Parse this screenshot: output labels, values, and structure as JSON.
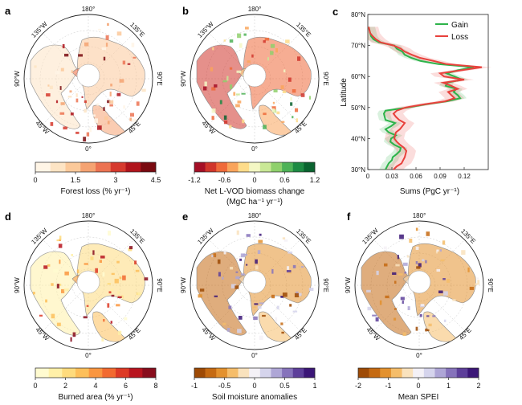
{
  "panels": [
    {
      "letter": "a",
      "top_lon": "180°",
      "bottom_lon": "0°",
      "left_lon": "90°W",
      "right_lon": "90°E",
      "ul_lon": "135°W",
      "ur_lon": "135°E",
      "ll_lon": "45°W",
      "lr_lon": "45°E",
      "cb_title": "Forest loss (% yr⁻¹)",
      "cb_ticks": [
        "0",
        "1.5",
        "3",
        "4.5"
      ],
      "cb_colors": [
        "#fff5e6",
        "#fde4c4",
        "#fbc99a",
        "#f5a372",
        "#ec7352",
        "#d63a2e",
        "#b0141c",
        "#7a0a10"
      ]
    },
    {
      "letter": "b",
      "top_lon": "180°",
      "bottom_lon": "0°",
      "left_lon": "90°W",
      "right_lon": "90°E",
      "ul_lon": "135°W",
      "ur_lon": "135°E",
      "ll_lon": "45°W",
      "lr_lon": "45°E",
      "cb_title": "Net L-VOD biomass change",
      "cb_subtitle": "(MgC ha⁻¹ yr⁻¹)",
      "cb_ticks": [
        "-1.2",
        "-0.6",
        "0",
        "0.6",
        "1.2"
      ],
      "cb_colors": [
        "#a50f26",
        "#d0352b",
        "#ef6a3a",
        "#f9a45b",
        "#fedc8a",
        "#f4f7c4",
        "#c9e896",
        "#8fd06c",
        "#4eb257",
        "#1d8a43",
        "#0a6330"
      ]
    },
    {
      "letter": "d",
      "top_lon": "180°",
      "bottom_lon": "0°",
      "left_lon": "90°W",
      "right_lon": "90°E",
      "ul_lon": "135°W",
      "ur_lon": "135°E",
      "ll_lon": "45°W",
      "lr_lon": "45°E",
      "cb_title": "Burned area (% yr⁻¹)",
      "cb_ticks": [
        "0",
        "2",
        "4",
        "6",
        "8"
      ],
      "cb_colors": [
        "#fffbd0",
        "#fff0a8",
        "#fedb7d",
        "#fdbf5a",
        "#fa9640",
        "#f26a30",
        "#dd3a26",
        "#b8141f",
        "#880d1d"
      ]
    },
    {
      "letter": "e",
      "top_lon": "180°",
      "bottom_lon": "0°",
      "left_lon": "90°W",
      "right_lon": "90°E",
      "ul_lon": "135°W",
      "ur_lon": "135°E",
      "ll_lon": "45°W",
      "lr_lon": "45°E",
      "cb_title": "Soil moisture anomalies",
      "cb_ticks": [
        "-1",
        "-0.5",
        "0",
        "0.5",
        "1"
      ],
      "cb_colors": [
        "#9e4a05",
        "#c56a12",
        "#e3912e",
        "#f5bd6a",
        "#f9e2bd",
        "#f4f1f6",
        "#d5d4ec",
        "#aea6d6",
        "#8673bb",
        "#5d3f9a",
        "#3b1677"
      ]
    },
    {
      "letter": "f",
      "top_lon": "180°",
      "bottom_lon": "0°",
      "left_lon": "90°W",
      "right_lon": "90°E",
      "ul_lon": "135°W",
      "ur_lon": "135°E",
      "ll_lon": "45°W",
      "lr_lon": "45°E",
      "cb_title": "Mean SPEI",
      "cb_ticks": [
        "-2",
        "-1",
        "0",
        "1",
        "2"
      ],
      "cb_colors": [
        "#9e4a05",
        "#c56a12",
        "#e3912e",
        "#f5bd6a",
        "#f9e2bd",
        "#f4f1f6",
        "#d5d4ec",
        "#aea6d6",
        "#8673bb",
        "#5d3f9a",
        "#3b1677"
      ]
    }
  ],
  "panel_c": {
    "letter": "c"
  },
  "chart_data": {
    "type": "line",
    "xlabel": "Sums (PgC yr⁻¹)",
    "ylabel": "Latitude",
    "xlim": [
      0,
      0.15
    ],
    "ylim": [
      30,
      80
    ],
    "xticks": [
      0,
      0.03,
      0.06,
      0.09,
      0.12
    ],
    "xtick_labels": [
      "0",
      "0.03",
      "0.06",
      "0.09",
      "0.12"
    ],
    "yticks": [
      30,
      40,
      50,
      60,
      70,
      80
    ],
    "ytick_labels": [
      "30°N",
      "40°N",
      "50°N",
      "60°N",
      "70°N",
      "80°N"
    ],
    "legend_position": "top-right",
    "series": [
      {
        "name": "Gain",
        "color": "#2db34a",
        "lat": [
          30,
          31,
          32,
          33,
          34,
          35,
          36,
          37,
          38,
          39,
          40,
          41,
          42,
          43,
          44,
          45,
          46,
          47,
          48,
          49,
          50,
          51,
          52,
          53,
          54,
          55,
          56,
          57,
          58,
          59,
          60,
          61,
          62,
          63,
          64,
          65,
          66,
          67,
          68,
          69,
          70,
          71,
          72,
          73,
          74,
          75,
          76
        ],
        "values": [
          0.022,
          0.024,
          0.026,
          0.03,
          0.031,
          0.036,
          0.04,
          0.041,
          0.033,
          0.028,
          0.029,
          0.035,
          0.026,
          0.022,
          0.029,
          0.034,
          0.022,
          0.021,
          0.02,
          0.022,
          0.05,
          0.072,
          0.098,
          0.115,
          0.112,
          0.107,
          0.11,
          0.097,
          0.099,
          0.117,
          0.108,
          0.098,
          0.112,
          0.132,
          0.088,
          0.066,
          0.054,
          0.046,
          0.043,
          0.036,
          0.033,
          0.014,
          0.007,
          0.004,
          0.003,
          0.002,
          0.001
        ],
        "band": 0.008
      },
      {
        "name": "Loss",
        "color": "#e8413c",
        "lat": [
          30,
          31,
          32,
          33,
          34,
          35,
          36,
          37,
          38,
          39,
          40,
          41,
          42,
          43,
          44,
          45,
          46,
          47,
          48,
          49,
          50,
          51,
          52,
          53,
          54,
          55,
          56,
          57,
          58,
          59,
          60,
          61,
          62,
          63,
          64,
          65,
          66,
          67,
          68,
          69,
          70,
          71,
          72,
          73,
          74,
          75,
          76
        ],
        "values": [
          0.032,
          0.036,
          0.042,
          0.044,
          0.046,
          0.047,
          0.048,
          0.045,
          0.04,
          0.036,
          0.033,
          0.034,
          0.035,
          0.04,
          0.043,
          0.046,
          0.039,
          0.035,
          0.032,
          0.036,
          0.047,
          0.07,
          0.096,
          0.108,
          0.104,
          0.1,
          0.112,
          0.104,
          0.094,
          0.12,
          0.095,
          0.09,
          0.116,
          0.142,
          0.098,
          0.082,
          0.065,
          0.055,
          0.046,
          0.041,
          0.032,
          0.016,
          0.01,
          0.006,
          0.003,
          0.002,
          0.001
        ],
        "band": 0.012
      }
    ]
  }
}
